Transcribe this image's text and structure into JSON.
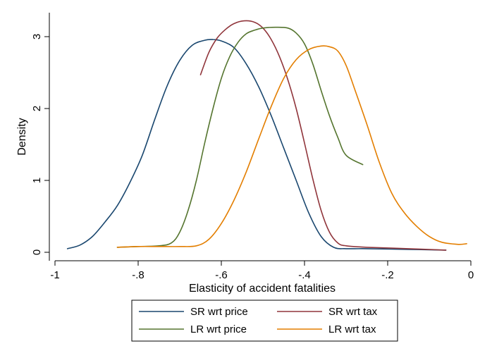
{
  "chart_data": {
    "type": "line",
    "title": "",
    "xlabel": "Elasticity of accident fatalities",
    "ylabel": "Density",
    "xlim": [
      -1.0,
      0.0
    ],
    "ylim": [
      0,
      3.35
    ],
    "x_ticks": [
      -1,
      -0.8,
      -0.6,
      -0.4,
      -0.2,
      0
    ],
    "x_tick_labels": [
      "-1",
      "-.8",
      "-.6",
      "-.4",
      "-.2",
      "0"
    ],
    "y_ticks": [
      0,
      1,
      2,
      3
    ],
    "y_tick_labels": [
      "0",
      "1",
      "2",
      "3"
    ],
    "grid": false,
    "legend_position": "bottom",
    "series": [
      {
        "name": "SR wrt price",
        "color": "#1a476f",
        "points": [
          [
            -0.97,
            0.05
          ],
          [
            -0.94,
            0.1
          ],
          [
            -0.91,
            0.22
          ],
          [
            -0.88,
            0.42
          ],
          [
            -0.85,
            0.65
          ],
          [
            -0.82,
            0.97
          ],
          [
            -0.79,
            1.35
          ],
          [
            -0.76,
            1.85
          ],
          [
            -0.73,
            2.32
          ],
          [
            -0.7,
            2.67
          ],
          [
            -0.67,
            2.88
          ],
          [
            -0.64,
            2.95
          ],
          [
            -0.62,
            2.96
          ],
          [
            -0.6,
            2.94
          ],
          [
            -0.57,
            2.85
          ],
          [
            -0.54,
            2.62
          ],
          [
            -0.51,
            2.3
          ],
          [
            -0.48,
            1.9
          ],
          [
            -0.45,
            1.45
          ],
          [
            -0.42,
            1.0
          ],
          [
            -0.39,
            0.55
          ],
          [
            -0.36,
            0.22
          ],
          [
            -0.33,
            0.07
          ],
          [
            -0.3,
            0.05
          ],
          [
            -0.25,
            0.05
          ],
          [
            -0.15,
            0.04
          ],
          [
            -0.06,
            0.03
          ]
        ]
      },
      {
        "name": "SR wrt tax",
        "color": "#90353b",
        "points": [
          [
            -0.65,
            2.47
          ],
          [
            -0.63,
            2.78
          ],
          [
            -0.61,
            2.98
          ],
          [
            -0.59,
            3.1
          ],
          [
            -0.57,
            3.18
          ],
          [
            -0.545,
            3.22
          ],
          [
            -0.52,
            3.2
          ],
          [
            -0.5,
            3.12
          ],
          [
            -0.48,
            2.96
          ],
          [
            -0.46,
            2.72
          ],
          [
            -0.44,
            2.4
          ],
          [
            -0.42,
            2.0
          ],
          [
            -0.4,
            1.52
          ],
          [
            -0.38,
            1.02
          ],
          [
            -0.36,
            0.58
          ],
          [
            -0.34,
            0.28
          ],
          [
            -0.32,
            0.13
          ],
          [
            -0.3,
            0.09
          ],
          [
            -0.25,
            0.07
          ],
          [
            -0.15,
            0.05
          ],
          [
            -0.06,
            0.03
          ]
        ]
      },
      {
        "name": "LR wrt price",
        "color": "#55752f",
        "points": [
          [
            -0.85,
            0.07
          ],
          [
            -0.8,
            0.08
          ],
          [
            -0.75,
            0.09
          ],
          [
            -0.72,
            0.13
          ],
          [
            -0.7,
            0.28
          ],
          [
            -0.68,
            0.58
          ],
          [
            -0.66,
            1.0
          ],
          [
            -0.64,
            1.52
          ],
          [
            -0.62,
            2.0
          ],
          [
            -0.6,
            2.42
          ],
          [
            -0.58,
            2.72
          ],
          [
            -0.56,
            2.92
          ],
          [
            -0.54,
            3.04
          ],
          [
            -0.52,
            3.09
          ],
          [
            -0.5,
            3.12
          ],
          [
            -0.47,
            3.13
          ],
          [
            -0.44,
            3.12
          ],
          [
            -0.42,
            3.05
          ],
          [
            -0.4,
            2.9
          ],
          [
            -0.38,
            2.62
          ],
          [
            -0.36,
            2.25
          ],
          [
            -0.34,
            1.9
          ],
          [
            -0.32,
            1.6
          ],
          [
            -0.3,
            1.35
          ],
          [
            -0.26,
            1.22
          ]
        ]
      },
      {
        "name": "LR wrt tax",
        "color": "#e37e00",
        "points": [
          [
            -0.85,
            0.07
          ],
          [
            -0.8,
            0.08
          ],
          [
            -0.75,
            0.08
          ],
          [
            -0.7,
            0.08
          ],
          [
            -0.66,
            0.09
          ],
          [
            -0.63,
            0.18
          ],
          [
            -0.6,
            0.4
          ],
          [
            -0.57,
            0.72
          ],
          [
            -0.54,
            1.12
          ],
          [
            -0.51,
            1.58
          ],
          [
            -0.48,
            2.03
          ],
          [
            -0.45,
            2.42
          ],
          [
            -0.42,
            2.68
          ],
          [
            -0.39,
            2.82
          ],
          [
            -0.36,
            2.87
          ],
          [
            -0.34,
            2.86
          ],
          [
            -0.32,
            2.8
          ],
          [
            -0.3,
            2.6
          ],
          [
            -0.28,
            2.28
          ],
          [
            -0.25,
            1.78
          ],
          [
            -0.22,
            1.25
          ],
          [
            -0.19,
            0.82
          ],
          [
            -0.16,
            0.55
          ],
          [
            -0.13,
            0.36
          ],
          [
            -0.1,
            0.22
          ],
          [
            -0.07,
            0.14
          ],
          [
            -0.03,
            0.11
          ],
          [
            -0.01,
            0.12
          ]
        ]
      }
    ]
  }
}
